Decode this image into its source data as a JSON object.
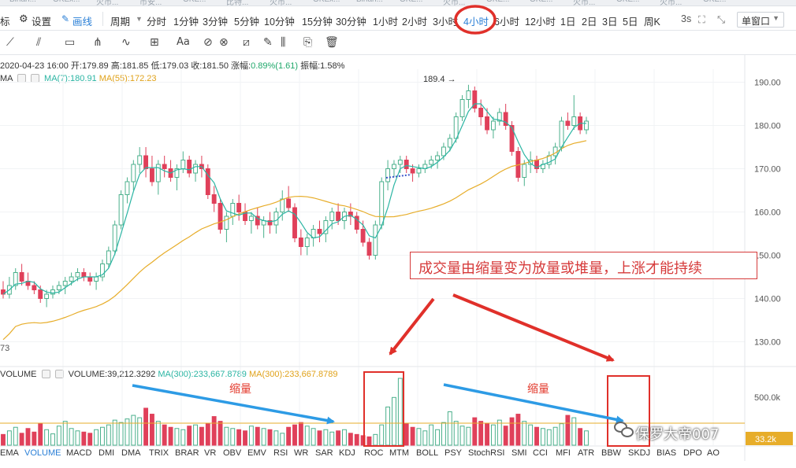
{
  "tabs": [
    "Binan...",
    "OKEx...",
    "火币...",
    "币安...",
    "OKE...",
    "比特...",
    "火币...",
    "OKEx...",
    "Binan...",
    "OKE...",
    "火币...",
    "OKE...",
    "OKE...",
    "火币...",
    "OKE...",
    "火币...",
    "OKE..."
  ],
  "toolbar": {
    "indicator_label": "标",
    "settings_label": "设置",
    "draw_label": "画线",
    "period_label": "周期",
    "periods": [
      "分时",
      "1分钟",
      "3分钟",
      "5分钟",
      "10分钟",
      "15分钟",
      "30分钟",
      "1小时",
      "2小时",
      "3小时",
      "4小时",
      "6小时",
      "12小时",
      "1日",
      "2日",
      "3日",
      "5日",
      "周K"
    ],
    "active_period": "4小时",
    "countdown": "3s",
    "window_mode": "单窗口"
  },
  "draw_tools": [
    "line-tool-icon",
    "parallel-tool-icon",
    "rectangle-tool-icon",
    "fork-tool-icon",
    "wave-tool-icon",
    "grid-tool-icon",
    "text-tool-icon",
    "magnet-icon",
    "lock-icon",
    "ruler-icon",
    "pencil-icon",
    "bars-icon",
    "copy-icon",
    "trash-icon"
  ],
  "info": {
    "date": "2020-04-23 16:00",
    "open_label": "开:",
    "open": "179.89",
    "high_label": "高:",
    "high": "181.85",
    "low_label": "低:",
    "low": "179.03",
    "close_label": "收:",
    "close": "181.50",
    "change_label": "涨幅:",
    "change": "0.89%(1.61)",
    "amplitude_label": "振幅:",
    "amplitude": "1.58%",
    "ma_label": "MA",
    "ma7": "MA(7):180.91",
    "ma55": "MA(55):172.23",
    "low_marker": "73",
    "vol_label": "VOLUME",
    "volume": "VOLUME:39,212.3292",
    "vol_ma1": "MA(300):233,667.8789",
    "vol_ma2": "MA(300):233,667.8789"
  },
  "price_axis": [
    "190.00",
    "180.00",
    "170.00",
    "160.00",
    "150.00",
    "140.00",
    "130.00"
  ],
  "volume_axis": [
    "500.0k",
    "33.2k"
  ],
  "high_marker": "189.4",
  "annotation": "成交量由缩量变为放量或堆量，上涨才能持续",
  "shrink_label_1": "缩量",
  "shrink_label_2": "缩量",
  "indicators": [
    "EMA",
    "VOLUME",
    "MACD",
    "DMI",
    "DMA",
    "TRIX",
    "BRAR",
    "VR",
    "OBV",
    "EMV",
    "RSI",
    "WR",
    "SAR",
    "KDJ",
    "ROC",
    "MTM",
    "BOLL",
    "PSY",
    "StochRSI",
    "SMI",
    "CCI",
    "MFI",
    "ATR",
    "BBW",
    "SKDJ",
    "BIAS",
    "DPO",
    "AO"
  ],
  "active_indicator": "VOLUME",
  "watermark": "保罗大帝007",
  "colors": {
    "up": "#4bb08c",
    "down": "#e0405a",
    "ma7": "#2bb5a3",
    "ma55": "#e7ad2a",
    "annotation": "#d63a3a",
    "arrow_blue": "#2d9be5",
    "highlight": "#e0302a"
  },
  "chart_data": {
    "type": "candlestick",
    "timeframe": "4小时",
    "ylim": [
      125,
      193
    ],
    "yticks": [
      130,
      140,
      150,
      160,
      170,
      180,
      190
    ],
    "high_marker": 189.4,
    "candles": [
      [
        142,
        144,
        140,
        141
      ],
      [
        141,
        145,
        140,
        143
      ],
      [
        143,
        147,
        142,
        146
      ],
      [
        146,
        148,
        143,
        144
      ],
      [
        144,
        146,
        142,
        143
      ],
      [
        143,
        144,
        141,
        142
      ],
      [
        142,
        143,
        139,
        140
      ],
      [
        140,
        142,
        138,
        141
      ],
      [
        141,
        143,
        140,
        142
      ],
      [
        142,
        144,
        141,
        143
      ],
      [
        143,
        145,
        141,
        144
      ],
      [
        144,
        146,
        143,
        145
      ],
      [
        145,
        147,
        144,
        146
      ],
      [
        146,
        147,
        144,
        145
      ],
      [
        145,
        146,
        143,
        144
      ],
      [
        144,
        146,
        142,
        145
      ],
      [
        145,
        149,
        144,
        148
      ],
      [
        148,
        152,
        147,
        151
      ],
      [
        151,
        158,
        150,
        157
      ],
      [
        157,
        165,
        156,
        164
      ],
      [
        164,
        168,
        162,
        167
      ],
      [
        167,
        172,
        165,
        171
      ],
      [
        171,
        175,
        169,
        173
      ],
      [
        173,
        175,
        168,
        170
      ],
      [
        170,
        173,
        166,
        167
      ],
      [
        167,
        172,
        164,
        171
      ],
      [
        171,
        173,
        168,
        170
      ],
      [
        170,
        172,
        167,
        168
      ],
      [
        168,
        171,
        165,
        170
      ],
      [
        170,
        174,
        169,
        172
      ],
      [
        172,
        173,
        168,
        169
      ],
      [
        169,
        172,
        167,
        171
      ],
      [
        171,
        173,
        168,
        170
      ],
      [
        170,
        171,
        163,
        164
      ],
      [
        164,
        166,
        160,
        162
      ],
      [
        162,
        163,
        155,
        156
      ],
      [
        156,
        160,
        153,
        159
      ],
      [
        159,
        163,
        157,
        162
      ],
      [
        162,
        164,
        158,
        160
      ],
      [
        160,
        162,
        157,
        158
      ],
      [
        158,
        160,
        155,
        159
      ],
      [
        159,
        161,
        156,
        157
      ],
      [
        157,
        159,
        154,
        158
      ],
      [
        158,
        160,
        155,
        157
      ],
      [
        157,
        161,
        155,
        160
      ],
      [
        160,
        165,
        158,
        163
      ],
      [
        163,
        166,
        160,
        161
      ],
      [
        161,
        162,
        153,
        154
      ],
      [
        154,
        156,
        150,
        152
      ],
      [
        152,
        155,
        150,
        154
      ],
      [
        154,
        157,
        152,
        156
      ],
      [
        156,
        158,
        153,
        155
      ],
      [
        155,
        159,
        153,
        158
      ],
      [
        158,
        161,
        156,
        160
      ],
      [
        160,
        162,
        157,
        158
      ],
      [
        158,
        161,
        156,
        160
      ],
      [
        160,
        162,
        157,
        159
      ],
      [
        159,
        160,
        155,
        156
      ],
      [
        156,
        158,
        152,
        153
      ],
      [
        153,
        154,
        149,
        150
      ],
      [
        150,
        158,
        149,
        157
      ],
      [
        157,
        168,
        156,
        167
      ],
      [
        167,
        172,
        165,
        170
      ],
      [
        170,
        172,
        168,
        171
      ],
      [
        171,
        173,
        169,
        172
      ],
      [
        172,
        173,
        169,
        170
      ],
      [
        170,
        171,
        167,
        169
      ],
      [
        169,
        171,
        168,
        170
      ],
      [
        170,
        172,
        169,
        171
      ],
      [
        171,
        173,
        170,
        172
      ],
      [
        172,
        174,
        170,
        173
      ],
      [
        173,
        176,
        172,
        175
      ],
      [
        175,
        178,
        174,
        177
      ],
      [
        177,
        183,
        176,
        182
      ],
      [
        182,
        187,
        181,
        186
      ],
      [
        186,
        189.4,
        184,
        188
      ],
      [
        188,
        189,
        183,
        184
      ],
      [
        184,
        186,
        180,
        182
      ],
      [
        182,
        184,
        178,
        179
      ],
      [
        179,
        182,
        177,
        181
      ],
      [
        181,
        184,
        180,
        183
      ],
      [
        183,
        185,
        179,
        180
      ],
      [
        180,
        181,
        173,
        174
      ],
      [
        174,
        175,
        167,
        168
      ],
      [
        168,
        172,
        166,
        171
      ],
      [
        171,
        174,
        169,
        172
      ],
      [
        172,
        173,
        169,
        170
      ],
      [
        170,
        172,
        169,
        171
      ],
      [
        171,
        174,
        170,
        173
      ],
      [
        173,
        176,
        171,
        175
      ],
      [
        175,
        182,
        174,
        181
      ],
      [
        181,
        183,
        179,
        180
      ],
      [
        180,
        187,
        179,
        182
      ],
      [
        182,
        183,
        178,
        179
      ],
      [
        179,
        182,
        178,
        181
      ]
    ],
    "ma7_label": "MA(7)",
    "ma55_label": "MA(55)",
    "volume": [
      90,
      120,
      150,
      100,
      140,
      110,
      180,
      130,
      95,
      160,
      200,
      140,
      120,
      110,
      100,
      130,
      150,
      170,
      210,
      190,
      220,
      250,
      230,
      310,
      260,
      200,
      170,
      150,
      140,
      130,
      160,
      170,
      150,
      180,
      240,
      200,
      150,
      140,
      130,
      120,
      160,
      150,
      140,
      130,
      120,
      100,
      150,
      170,
      190,
      160,
      140,
      120,
      130,
      110,
      120,
      130,
      100,
      90,
      80,
      70,
      90,
      170,
      320,
      400,
      560,
      180,
      150,
      140,
      120,
      170,
      130,
      190,
      280,
      200,
      160,
      150,
      230,
      200,
      180,
      170,
      210,
      160,
      230,
      260,
      200,
      170,
      150,
      140,
      130,
      150,
      180,
      250,
      230,
      140,
      120
    ]
  }
}
